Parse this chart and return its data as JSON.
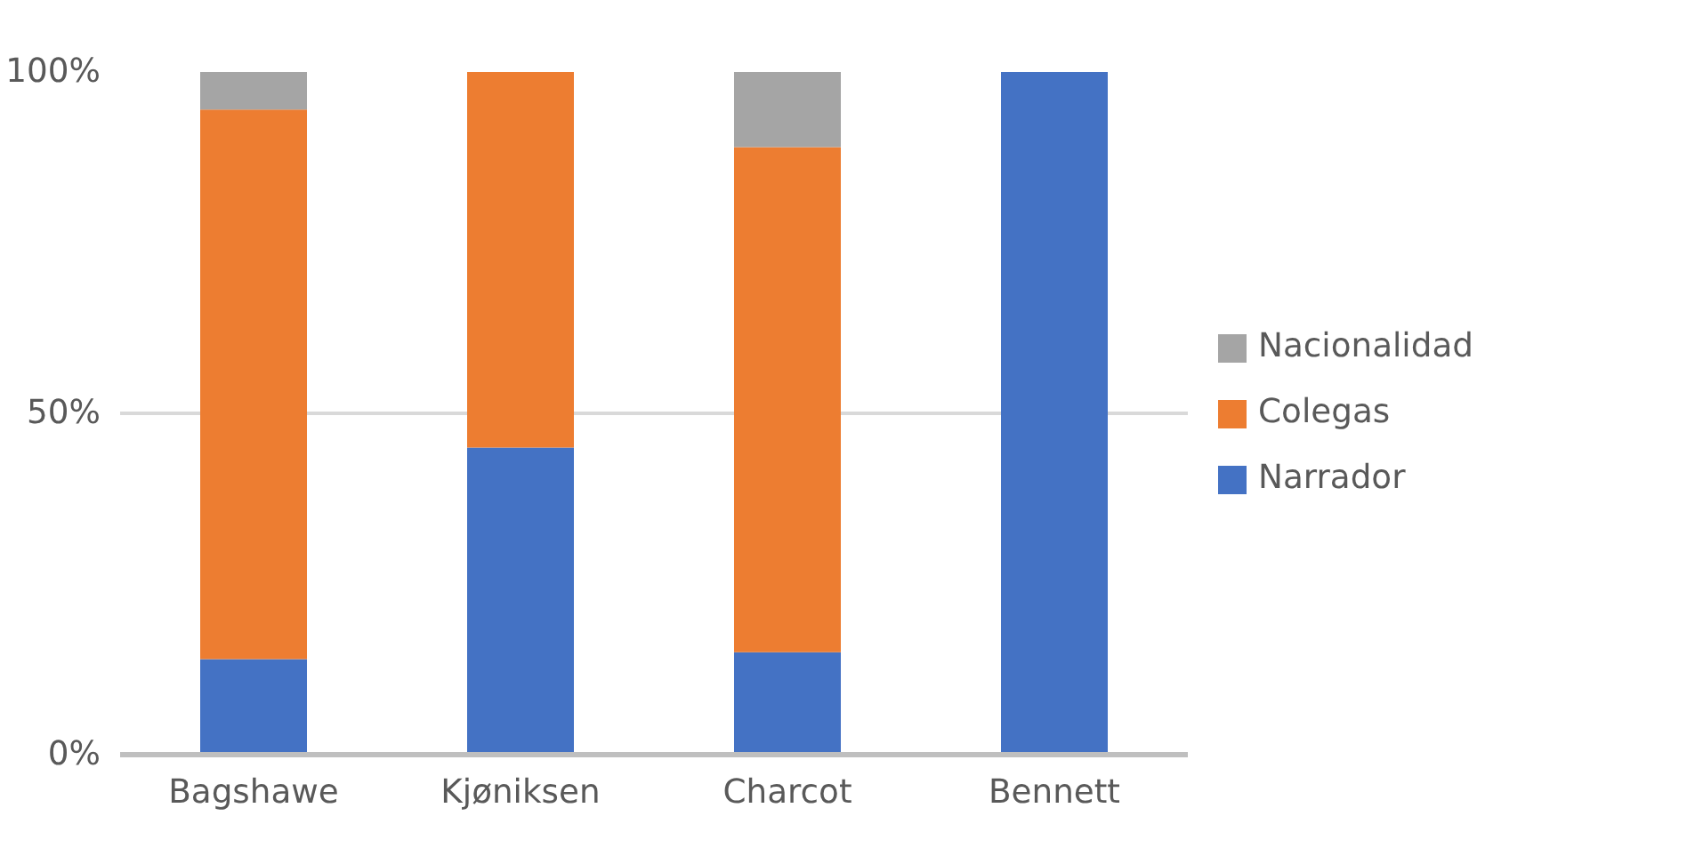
{
  "chart_data": {
    "type": "bar",
    "stacked": true,
    "categories": [
      "Bagshawe",
      "Kjøniksen",
      "Charcot",
      "Bennett"
    ],
    "series": [
      {
        "name": "Narrador",
        "color": "#4472c4",
        "values": [
          14,
          45,
          15,
          100
        ]
      },
      {
        "name": "Colegas",
        "color": "#ed7d31",
        "values": [
          80.5,
          55,
          74,
          0
        ]
      },
      {
        "name": "Nacionalidad",
        "color": "#a5a5a5",
        "values": [
          5.5,
          0,
          11,
          0
        ]
      }
    ],
    "ylim": [
      0,
      100
    ],
    "yticks": [
      {
        "value": 0,
        "label": "0%"
      },
      {
        "value": 50,
        "label": "50%"
      },
      {
        "value": 100,
        "label": "100%"
      }
    ],
    "grid": "y",
    "legend": "right"
  }
}
